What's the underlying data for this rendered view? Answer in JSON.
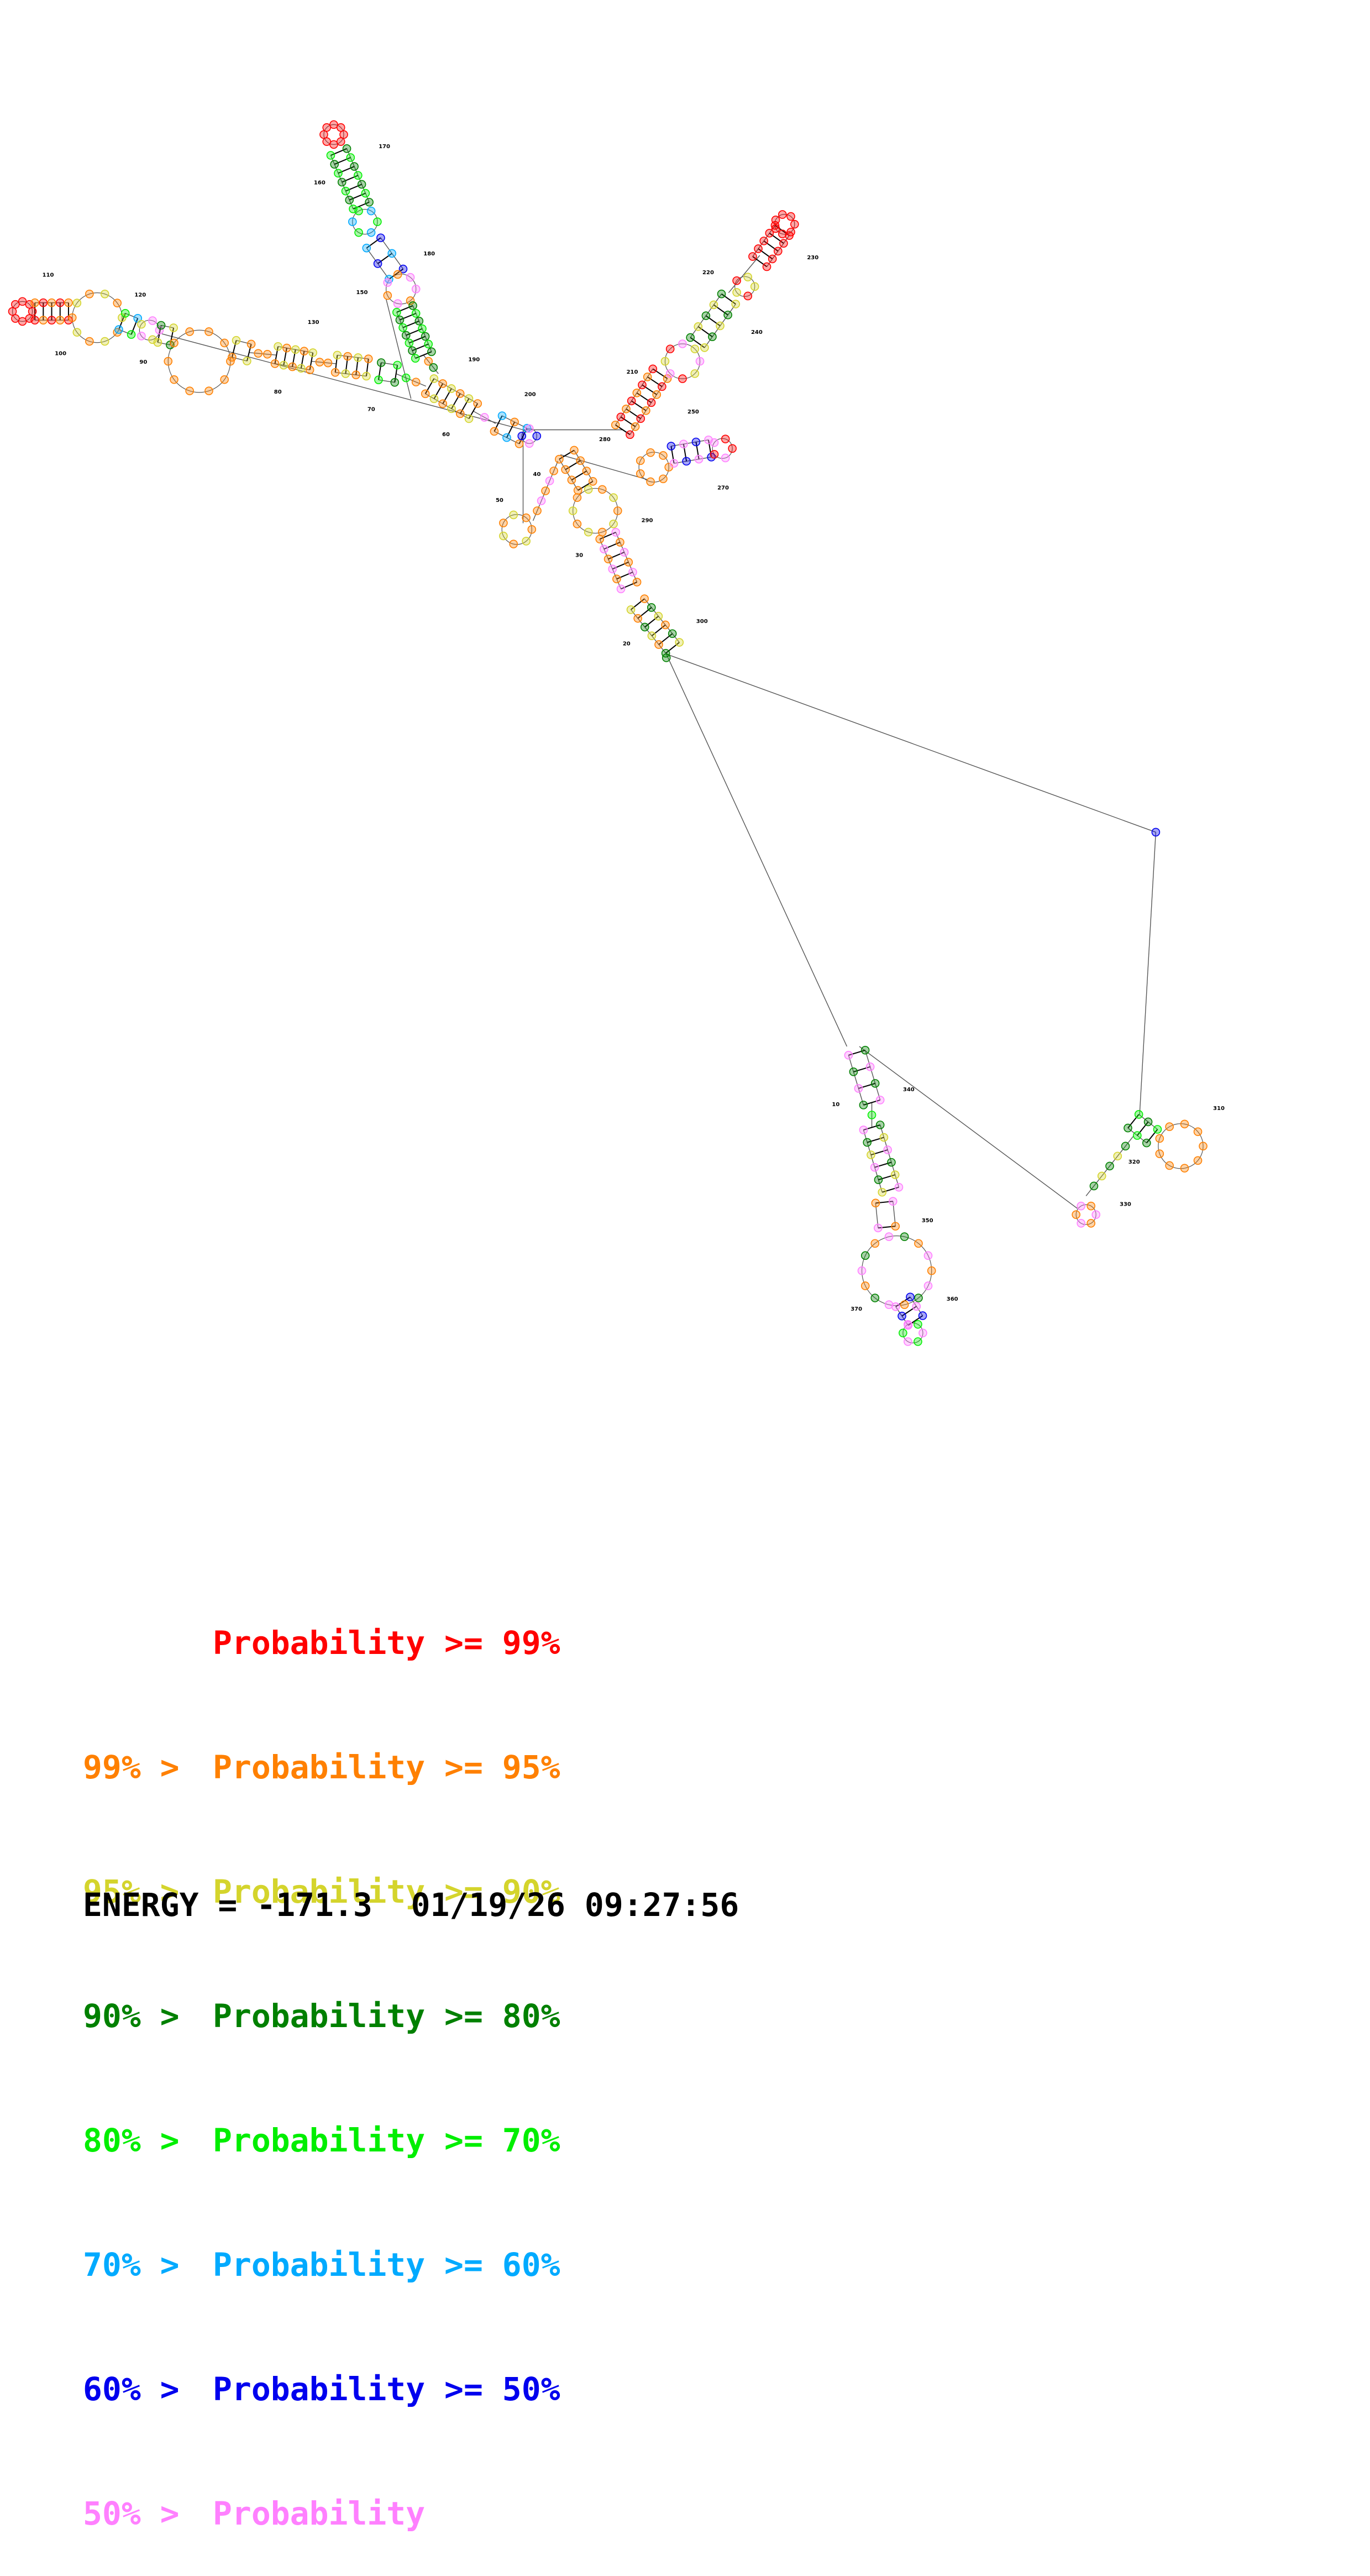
{
  "colors": {
    "red": "#ff0000",
    "orange": "#ff8000",
    "yellow": "#d4d42c",
    "dark_green": "#008000",
    "green": "#00ee00",
    "cyan": "#00aaff",
    "blue": "#0000ee",
    "pink": "#ff80ff",
    "backbone": "#555555"
  },
  "nucleotide_labels": [
    "10",
    "20",
    "30",
    "40",
    "50",
    "60",
    "70",
    "80",
    "90",
    "100",
    "110",
    "120",
    "130",
    "150",
    "160",
    "170",
    "180",
    "190",
    "200",
    "210",
    "220",
    "230",
    "240",
    "250",
    "270",
    "280",
    "290",
    "300",
    "310",
    "320",
    "330",
    "340",
    "350",
    "360",
    "370"
  ],
  "legend": [
    {
      "prefix": "",
      "label": "Probability",
      "suffix": ">= 99%",
      "color": "#ff0000"
    },
    {
      "prefix": "99% >",
      "label": "Probability",
      "suffix": ">= 95%",
      "color": "#ff8000"
    },
    {
      "prefix": "95% >",
      "label": "Probability",
      "suffix": ">= 90%",
      "color": "#d4d42c"
    },
    {
      "prefix": "90% >",
      "label": "Probability",
      "suffix": ">= 80%",
      "color": "#008000"
    },
    {
      "prefix": "80% >",
      "label": "Probability",
      "suffix": ">= 70%",
      "color": "#00ee00"
    },
    {
      "prefix": "70% >",
      "label": "Probability",
      "suffix": ">= 60%",
      "color": "#00aaff"
    },
    {
      "prefix": "60% >",
      "label": "Probability",
      "suffix": ">= 50%",
      "color": "#0000ee"
    },
    {
      "prefix": "50% >",
      "label": "Probability",
      "suffix": "",
      "color": "#ff80ff"
    }
  ],
  "footer": {
    "energy": "ENERGY = -171.3",
    "timestamp": "01/19/26 09:27:56"
  }
}
